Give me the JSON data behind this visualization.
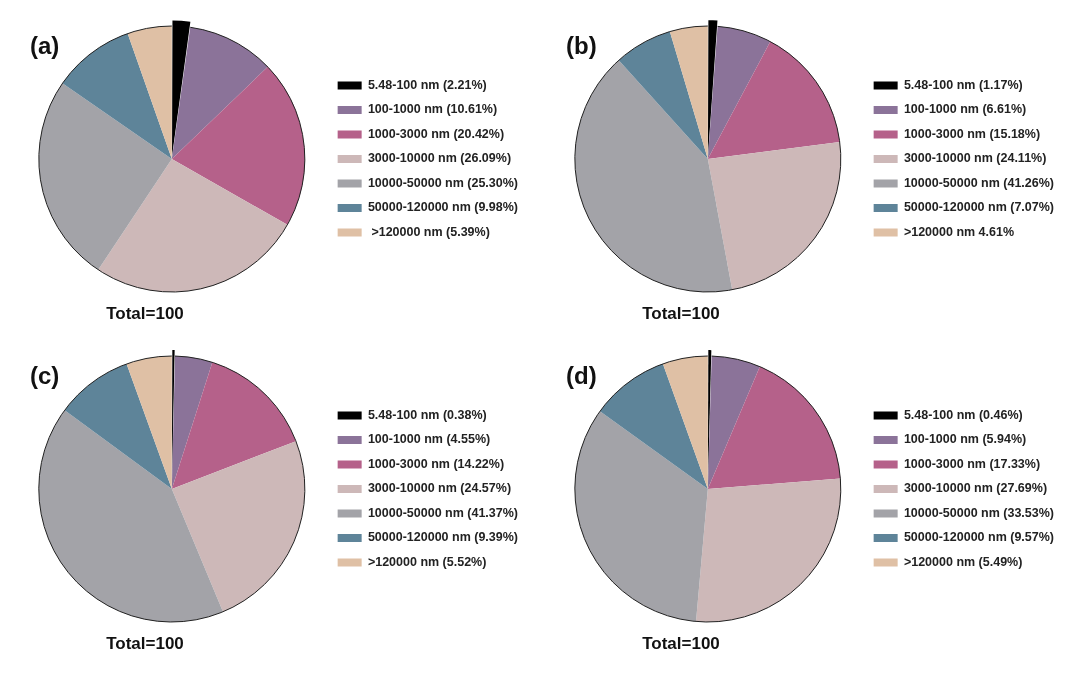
{
  "chart_data": [
    {
      "type": "pie",
      "title": "(a)",
      "legend": "right",
      "annotations": [
        "Total=100"
      ],
      "categories": [
        "5.48-100 nm (2.21%)",
        "100-1000 nm (10.61%)",
        "1000-3000 nm (20.42%)",
        "3000-10000 nm (26.09%)",
        "10000-50000 nm (25.30%)",
        "50000-120000 nm (9.98%)",
        " >120000 nm (5.39%)"
      ],
      "values": [
        2.21,
        10.61,
        20.42,
        26.09,
        25.3,
        9.98,
        5.39
      ],
      "colors": [
        "#000000",
        "#8b7399",
        "#b5618a",
        "#cdb8b8",
        "#a3a3a8",
        "#5e8499",
        "#dfc0a5"
      ]
    },
    {
      "type": "pie",
      "title": "(b)",
      "legend": "right",
      "annotations": [
        "Total=100"
      ],
      "categories": [
        "5.48-100 nm (1.17%)",
        "100-1000 nm (6.61%)",
        "1000-3000 nm (15.18%)",
        "3000-10000 nm (24.11%)",
        "10000-50000 nm (41.26%)",
        "50000-120000 nm (7.07%)",
        ">120000 nm 4.61%"
      ],
      "values": [
        1.17,
        6.61,
        15.18,
        24.11,
        41.26,
        7.07,
        4.61
      ],
      "colors": [
        "#000000",
        "#8b7399",
        "#b5618a",
        "#cdb8b8",
        "#a3a3a8",
        "#5e8499",
        "#dfc0a5"
      ]
    },
    {
      "type": "pie",
      "title": "(c)",
      "legend": "right",
      "annotations": [
        "Total=100"
      ],
      "categories": [
        "5.48-100 nm (0.38%)",
        "100-1000 nm (4.55%)",
        "1000-3000 nm (14.22%)",
        "3000-10000 nm (24.57%)",
        "10000-50000 nm (41.37%)",
        "50000-120000 nm (9.39%)",
        ">120000 nm (5.52%)"
      ],
      "values": [
        0.38,
        4.55,
        14.22,
        24.57,
        41.37,
        9.39,
        5.52
      ],
      "colors": [
        "#000000",
        "#8b7399",
        "#b5618a",
        "#cdb8b8",
        "#a3a3a8",
        "#5e8499",
        "#dfc0a5"
      ]
    },
    {
      "type": "pie",
      "title": "(d)",
      "legend": "right",
      "annotations": [
        "Total=100"
      ],
      "categories": [
        "5.48-100 nm (0.46%)",
        "100-1000 nm (5.94%)",
        "1000-3000 nm (17.33%)",
        "3000-10000 nm (27.69%)",
        "10000-50000 nm (33.53%)",
        "50000-120000 nm (9.57%)",
        ">120000 nm (5.49%)"
      ],
      "values": [
        0.46,
        5.94,
        17.33,
        27.69,
        33.53,
        9.57,
        5.49
      ],
      "colors": [
        "#000000",
        "#8b7399",
        "#b5618a",
        "#cdb8b8",
        "#a3a3a8",
        "#5e8499",
        "#dfc0a5"
      ]
    }
  ]
}
